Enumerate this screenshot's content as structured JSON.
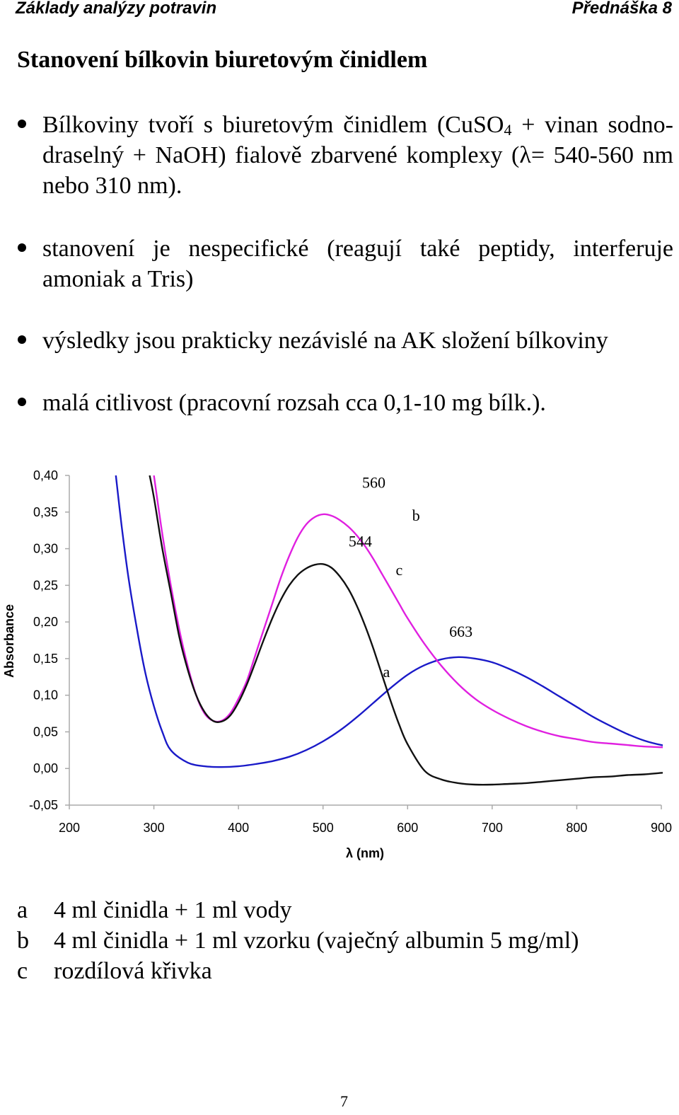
{
  "header": {
    "left": "Základy analýzy potravin",
    "right": "Přednáška 8"
  },
  "title": "Stanovení bílkovin biuretovým činidlem",
  "bullets": [
    {
      "pre": "Bílkoviny tvoří s biuretovým činidlem (CuSO",
      "sub": "4",
      "post": " + vinan sodno-draselný + NaOH) fialově zbarvené komplexy (λ= 540-560 nm nebo 310 nm)."
    },
    {
      "text": "stanovení je nespecifické (reagují také peptidy, interferuje amoniak a Tris)"
    },
    {
      "text": "výsledky jsou prakticky nezávislé na AK složení bílkoviny"
    },
    {
      "text": "malá citlivost (pracovní rozsah cca 0,1-10 mg bílk.)."
    }
  ],
  "chart_data": {
    "type": "line",
    "xlabel": "λ (nm)",
    "ylabel": "Absorbance",
    "xlim": [
      200,
      900
    ],
    "ylim": [
      -0.05,
      0.4
    ],
    "x_ticks": [
      "200",
      "300",
      "400",
      "500",
      "600",
      "700",
      "800",
      "900"
    ],
    "y_ticks": [
      "-0,05",
      "0,00",
      "0,05",
      "0,10",
      "0,15",
      "0,20",
      "0,25",
      "0,30",
      "0,35",
      "0,40"
    ],
    "grid": false,
    "legend": "none",
    "series": [
      {
        "color": "#1a1ac8",
        "x": [
          255,
          262,
          270,
          280,
          290,
          300,
          310,
          320,
          340,
          360,
          380,
          400,
          420,
          440,
          460,
          480,
          500,
          520,
          540,
          560,
          580,
          600,
          620,
          640,
          660,
          680,
          700,
          720,
          740,
          760,
          780,
          800,
          820,
          840,
          860,
          880,
          900,
          918
        ],
        "y": [
          0.4,
          0.33,
          0.26,
          0.19,
          0.13,
          0.085,
          0.05,
          0.025,
          0.008,
          0.003,
          0.002,
          0.003,
          0.006,
          0.01,
          0.016,
          0.025,
          0.037,
          0.052,
          0.07,
          0.09,
          0.11,
          0.128,
          0.141,
          0.149,
          0.152,
          0.15,
          0.145,
          0.136,
          0.125,
          0.112,
          0.098,
          0.084,
          0.07,
          0.058,
          0.047,
          0.038,
          0.032,
          0.029
        ]
      },
      {
        "color": "#e020e0",
        "x": [
          300,
          310,
          320,
          330,
          340,
          350,
          360,
          370,
          380,
          390,
          400,
          410,
          420,
          430,
          440,
          450,
          460,
          470,
          480,
          490,
          500,
          510,
          520,
          530,
          540,
          550,
          560,
          570,
          580,
          590,
          600,
          620,
          640,
          660,
          680,
          700,
          720,
          740,
          760,
          780,
          800,
          820,
          840,
          860,
          880,
          900,
          918
        ],
        "y": [
          0.4,
          0.32,
          0.25,
          0.19,
          0.14,
          0.1,
          0.075,
          0.065,
          0.065,
          0.075,
          0.095,
          0.12,
          0.155,
          0.19,
          0.225,
          0.26,
          0.29,
          0.315,
          0.333,
          0.343,
          0.347,
          0.345,
          0.339,
          0.33,
          0.318,
          0.303,
          0.285,
          0.265,
          0.245,
          0.225,
          0.205,
          0.17,
          0.14,
          0.115,
          0.095,
          0.08,
          0.068,
          0.058,
          0.05,
          0.044,
          0.04,
          0.036,
          0.034,
          0.032,
          0.03,
          0.029,
          0.028
        ]
      },
      {
        "color": "#111111",
        "x": [
          295,
          300,
          310,
          320,
          330,
          340,
          350,
          360,
          370,
          380,
          390,
          400,
          410,
          420,
          430,
          440,
          450,
          460,
          470,
          480,
          490,
          500,
          510,
          520,
          530,
          540,
          550,
          560,
          570,
          580,
          590,
          600,
          620,
          640,
          660,
          680,
          700,
          720,
          740,
          760,
          780,
          800,
          820,
          840,
          860,
          880,
          900,
          918
        ],
        "y": [
          0.4,
          0.37,
          0.3,
          0.24,
          0.18,
          0.135,
          0.1,
          0.077,
          0.065,
          0.064,
          0.072,
          0.09,
          0.115,
          0.145,
          0.176,
          0.205,
          0.23,
          0.25,
          0.264,
          0.273,
          0.278,
          0.279,
          0.274,
          0.262,
          0.245,
          0.222,
          0.194,
          0.162,
          0.127,
          0.092,
          0.06,
          0.033,
          -0.003,
          -0.015,
          -0.02,
          -0.022,
          -0.022,
          -0.021,
          -0.02,
          -0.018,
          -0.016,
          -0.014,
          -0.012,
          -0.011,
          -0.009,
          -0.008,
          -0.006,
          -0.005
        ]
      }
    ],
    "annotations": [
      {
        "text": "560",
        "x": 560,
        "y": 0.383
      },
      {
        "text": "544",
        "x": 544,
        "y": 0.303
      },
      {
        "text": "b",
        "x": 610,
        "y": 0.338
      },
      {
        "text": "c",
        "x": 590,
        "y": 0.264
      },
      {
        "text": "663",
        "x": 663,
        "y": 0.18
      },
      {
        "text": "a",
        "x": 575,
        "y": 0.125
      }
    ]
  },
  "legend": [
    {
      "key": "a",
      "text": "4 ml činidla + 1 ml vody"
    },
    {
      "key": "b",
      "text": "4 ml činidla + 1 ml vzorku (vaječný albumin 5 mg/ml)"
    },
    {
      "key": "c",
      "text": "rozdílová křivka"
    }
  ],
  "page_number": "7"
}
